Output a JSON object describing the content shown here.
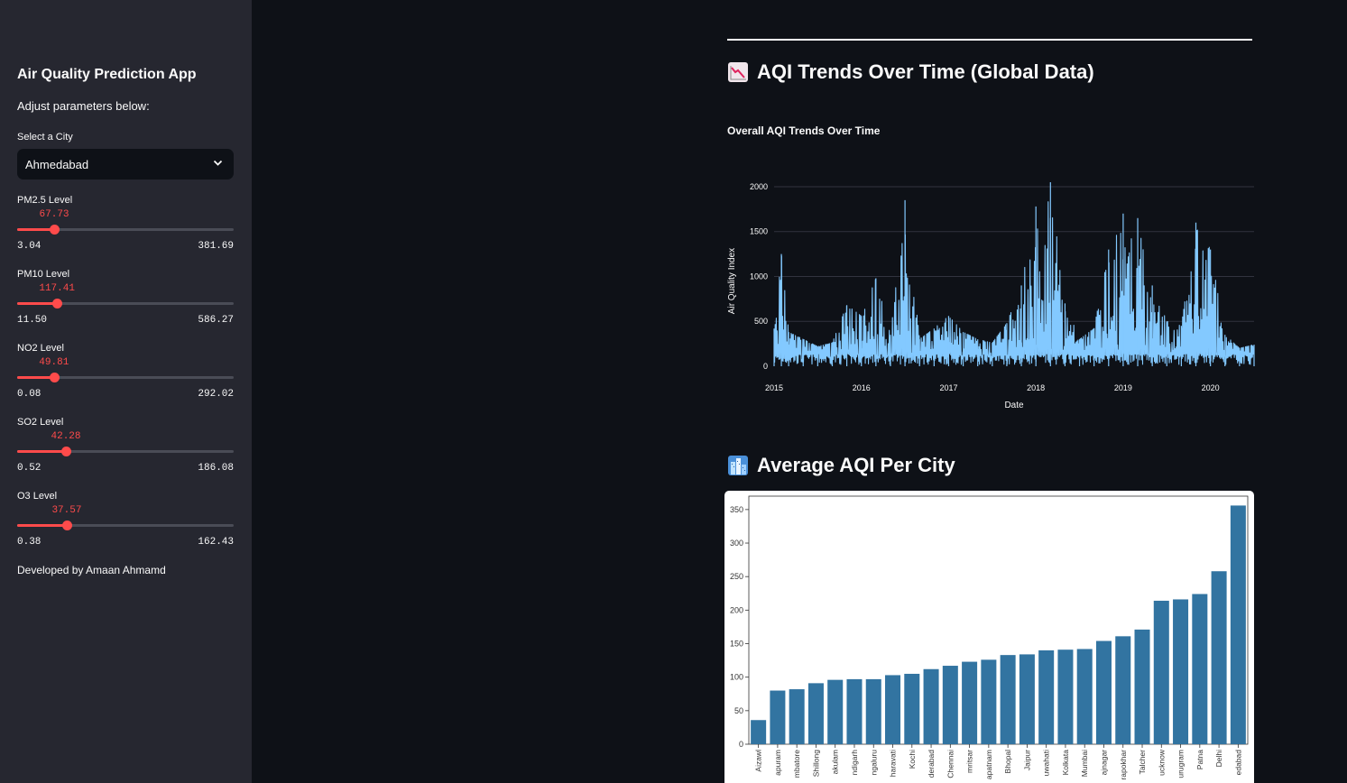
{
  "sidebar": {
    "title": "Air Quality Prediction App",
    "subtitle": "Adjust parameters below:",
    "city_label": "Select a City",
    "city_value": "Ahmedabad",
    "sliders": [
      {
        "label": "PM2.5 Level",
        "value": "67.73",
        "min": "3.04",
        "max": "381.69",
        "fraction": 0.171
      },
      {
        "label": "PM10 Level",
        "value": "117.41",
        "min": "11.50",
        "max": "586.27",
        "fraction": 0.184
      },
      {
        "label": "NO2 Level",
        "value": "49.81",
        "min": "0.08",
        "max": "292.02",
        "fraction": 0.17
      },
      {
        "label": "SO2 Level",
        "value": "42.28",
        "min": "0.52",
        "max": "186.08",
        "fraction": 0.225
      },
      {
        "label": "O3 Level",
        "value": "37.57",
        "min": "0.38",
        "max": "162.43",
        "fraction": 0.229
      }
    ],
    "credit": "Developed by Amaan Ahmamd"
  },
  "main": {
    "section1_title": "AQI Trends Over Time (Global Data)",
    "section1_icon": "chart-decreasing-icon",
    "line_chart_title": "Overall AQI Trends Over Time",
    "section2_title": "Average AQI Per City",
    "section2_icon": "cityscape-icon"
  },
  "colors": {
    "accent": "#ff4b4b",
    "line_series": "#83c9ff",
    "bar_fill": "#3274a1",
    "sidebar_bg": "#262730",
    "main_bg": "#0e1117"
  },
  "chart_data": [
    {
      "type": "line",
      "title": "Overall AQI Trends Over Time",
      "xlabel": "Date",
      "ylabel": "Air Quality Index",
      "x_ticks": [
        "2015",
        "2016",
        "2017",
        "2018",
        "2019",
        "2020"
      ],
      "y_ticks": [
        0,
        500,
        1000,
        1500,
        2000
      ],
      "ylim": [
        0,
        2100
      ],
      "xlim": [
        "2015-01",
        "2020-07"
      ],
      "grid": true,
      "series": [
        {
          "color": "#83c9ff",
          "x": [
            "2015-01",
            "2015-02",
            "2015-03",
            "2015-05",
            "2015-07",
            "2015-09",
            "2015-11",
            "2016-01",
            "2016-03",
            "2016-05",
            "2016-07",
            "2016-09",
            "2016-11",
            "2017-01",
            "2017-03",
            "2017-05",
            "2017-07",
            "2017-09",
            "2017-11",
            "2018-01",
            "2018-03",
            "2018-05",
            "2018-07",
            "2018-09",
            "2018-11",
            "2019-01",
            "2019-03",
            "2019-05",
            "2019-07",
            "2019-09",
            "2019-11",
            "2020-01",
            "2020-03",
            "2020-05",
            "2020-07"
          ],
          "y": [
            420,
            1250,
            380,
            300,
            220,
            260,
            680,
            560,
            980,
            350,
            1850,
            300,
            420,
            560,
            380,
            300,
            260,
            480,
            900,
            1780,
            2050,
            700,
            300,
            420,
            1300,
            1700,
            1650,
            900,
            500,
            450,
            1600,
            1300,
            350,
            200,
            240
          ]
        }
      ]
    },
    {
      "type": "bar",
      "xlabel": "",
      "ylabel": "",
      "y_ticks": [
        0,
        50,
        100,
        150,
        200,
        250,
        300,
        350
      ],
      "ylim": [
        0,
        370
      ],
      "categories": [
        "Aizawl",
        "apuram",
        "mbatore",
        "Shillong",
        "akulam",
        "ndigarh",
        "ngaluru",
        "haravati",
        "Kochi",
        "derabad",
        "Chennai",
        "mritsar",
        "apatnam",
        "Bhopal",
        "Jaipur",
        "uwahati",
        "Kolkata",
        "Mumbai",
        "ajnagar",
        "rapokhar",
        "Talcher",
        "ucknow",
        "urugram",
        "Patna",
        "Delhi",
        "edabad"
      ],
      "values": [
        36,
        80,
        82,
        91,
        96,
        97,
        97,
        103,
        105,
        112,
        117,
        123,
        126,
        133,
        134,
        140,
        141,
        142,
        154,
        161,
        171,
        214,
        216,
        224,
        258,
        356
      ]
    }
  ]
}
